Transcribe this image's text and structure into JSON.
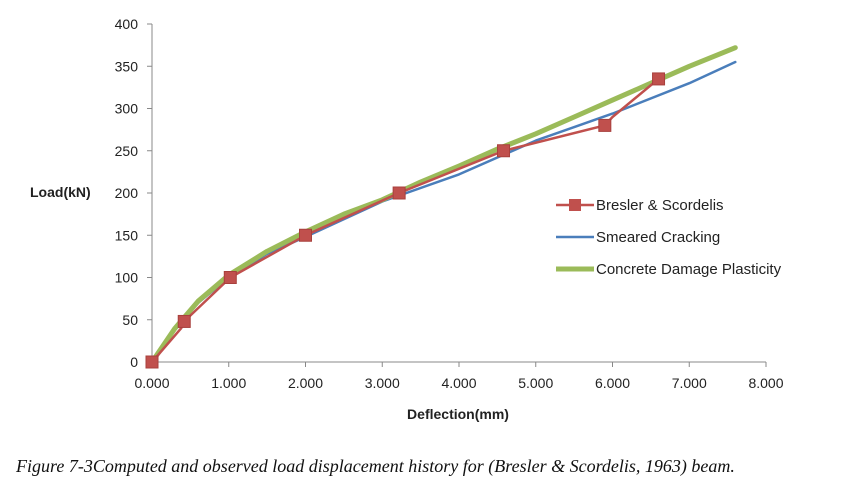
{
  "chart_data": {
    "type": "line",
    "title": "",
    "xlabel": "Deflection(mm)",
    "ylabel": "Load(kN)",
    "xlim": [
      0,
      8
    ],
    "ylim": [
      0,
      400
    ],
    "x_ticks": [
      "0.000",
      "1.000",
      "2.000",
      "3.000",
      "4.000",
      "5.000",
      "6.000",
      "7.000",
      "8.000"
    ],
    "y_ticks": [
      "0",
      "50",
      "100",
      "150",
      "200",
      "250",
      "300",
      "350",
      "400"
    ],
    "legend_position": "right",
    "series": [
      {
        "name": "Bresler & Scordelis",
        "color": "#c0504d",
        "marker": "square",
        "x": [
          0,
          0.38,
          0.42,
          1.02,
          2.0,
          3.22,
          4.58,
          5.9,
          6.0,
          6.6
        ],
        "y": [
          0,
          40,
          48,
          100,
          150,
          200,
          250,
          280,
          290,
          335
        ]
      },
      {
        "name": "Smeared Cracking",
        "color": "#4a7ebb",
        "marker": "none",
        "x": [
          0,
          0.3,
          0.6,
          1.0,
          1.5,
          2.0,
          3.0,
          4.0,
          5.0,
          6.0,
          7.0,
          7.6
        ],
        "y": [
          0,
          38,
          70,
          100,
          128,
          148,
          190,
          222,
          262,
          294,
          330,
          355
        ]
      },
      {
        "name": "Concrete Damage Plasticity",
        "color": "#9bbb59",
        "marker": "none",
        "x": [
          0,
          0.3,
          0.6,
          1.0,
          1.5,
          2.0,
          2.5,
          3.0,
          3.5,
          4.0,
          4.5,
          5.0,
          5.5,
          6.0,
          6.5,
          7.0,
          7.6
        ],
        "y": [
          0,
          40,
          72,
          103,
          131,
          154,
          175,
          192,
          213,
          232,
          252,
          270,
          290,
          310,
          330,
          350,
          372
        ]
      }
    ]
  },
  "caption": "Figure 7-3Computed and observed load displacement history for (Bresler & Scordelis, 1963) beam."
}
